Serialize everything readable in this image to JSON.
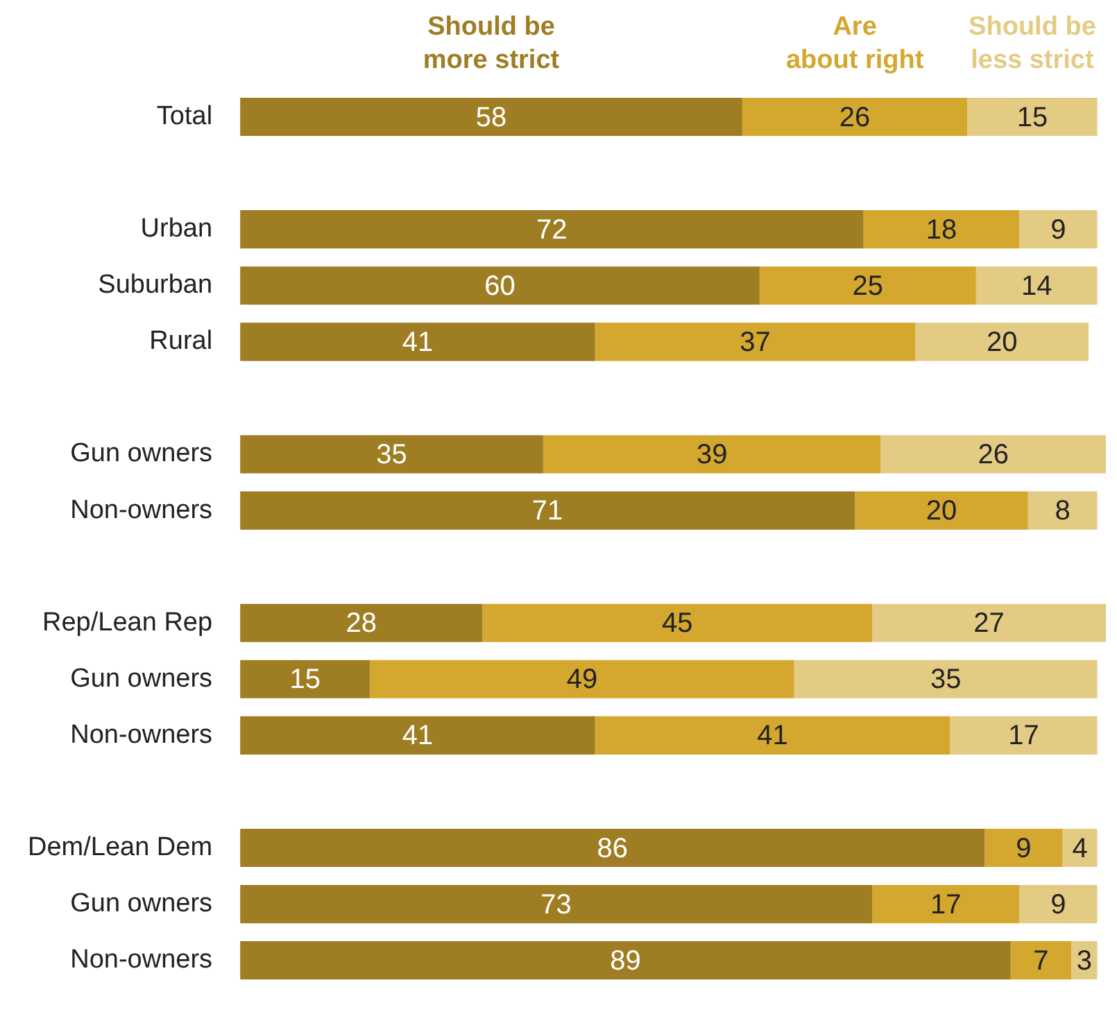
{
  "chart_data": {
    "type": "bar",
    "orientation": "horizontal",
    "stacked": true,
    "legend": "top",
    "data_labels": true,
    "xlim": [
      0,
      100
    ],
    "tick_labels": "y",
    "categories": [
      "Total",
      null,
      "Urban",
      "Suburban",
      "Rural",
      null,
      "Gun owners",
      "Non-owners",
      null,
      "Rep/Lean Rep",
      "Gun owners",
      "Non-owners",
      null,
      "Dem/Lean Dem",
      "Gun owners",
      "Non-owners"
    ],
    "series": [
      {
        "name": "Should be more strict",
        "color": "#9e7d23",
        "values": [
          58,
          null,
          72,
          60,
          41,
          null,
          35,
          71,
          null,
          28,
          15,
          41,
          null,
          86,
          73,
          89
        ]
      },
      {
        "name": "Are about right",
        "color": "#d4a72f",
        "values": [
          26,
          null,
          18,
          25,
          37,
          null,
          39,
          20,
          null,
          45,
          49,
          41,
          null,
          9,
          17,
          7
        ]
      },
      {
        "name": "Should be less strict",
        "color": "#e4cb84",
        "values": [
          15,
          null,
          9,
          14,
          20,
          null,
          26,
          8,
          null,
          27,
          35,
          17,
          null,
          4,
          9,
          3
        ]
      }
    ]
  }
}
